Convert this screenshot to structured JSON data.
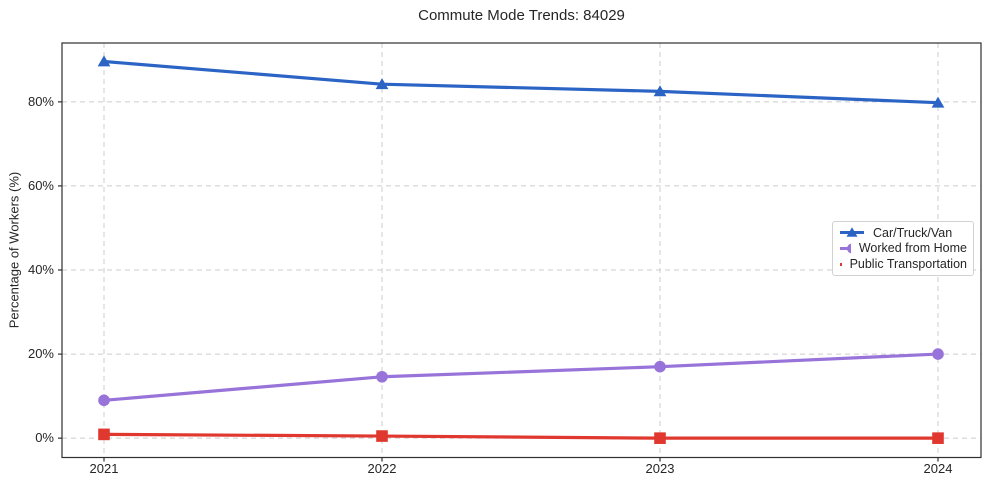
{
  "chart_data": {
    "type": "line",
    "title": "Commute Mode Trends: 84029",
    "xlabel": "",
    "ylabel": "Percentage of Workers (%)",
    "categories": [
      "2021",
      "2022",
      "2023",
      "2024"
    ],
    "series": [
      {
        "name": "Car/Truck/Van",
        "marker": "triangle",
        "color": "#2b64c5",
        "values": [
          89.6,
          84.2,
          82.5,
          79.8
        ]
      },
      {
        "name": "Worked from Home",
        "marker": "circle",
        "color": "#9873d9",
        "values": [
          9.0,
          14.6,
          17.0,
          20.0
        ]
      },
      {
        "name": "Public Transportation",
        "marker": "square",
        "color": "#e0382f",
        "values": [
          0.9,
          0.5,
          0.0,
          0.0
        ]
      }
    ],
    "ylim": [
      -4.6,
      94.0
    ],
    "yticks": [
      0,
      20,
      40,
      60,
      80
    ],
    "ytick_labels": [
      "0%",
      "20%",
      "40%",
      "60%",
      "80%"
    ],
    "grid": true,
    "grid_style": "dashed",
    "legend_position": "center right",
    "colors": {
      "grid": "#cccccc",
      "spine": "#303030",
      "text": "#262626",
      "background": "#ffffff"
    }
  }
}
